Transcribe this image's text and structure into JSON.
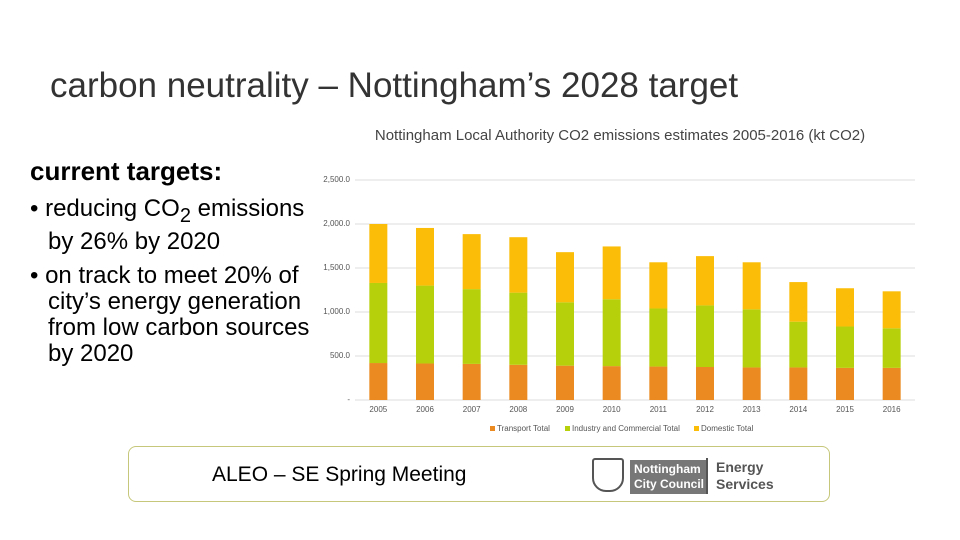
{
  "slide": {
    "title": "carbon neutrality – Nottingham’s 2028 target",
    "subheading": "current targets:",
    "bullets": [
      {
        "before": "reducing CO",
        "sub": "2",
        "after": " emissions by 26% by 2020"
      },
      {
        "before": "on track to meet 20% of city’s energy generation from low carbon sources by 2020"
      }
    ],
    "footer": {
      "text": "ALEO – SE Spring Meeting",
      "logo_line1": "Nottingham",
      "logo_line2": "City Council",
      "brand_line1": "Energy",
      "brand_line2": "Services"
    }
  },
  "chart_data": {
    "type": "stacked_bar",
    "title": "Nottingham Local Authority CO2 emissions estimates 2005-2016 (kt CO2)",
    "categories": [
      "2005",
      "2006",
      "2007",
      "2008",
      "2009",
      "2010",
      "2011",
      "2012",
      "2013",
      "2014",
      "2015",
      "2016"
    ],
    "series": [
      {
        "name": "Transport Total",
        "color": "#ea8a20",
        "values": [
          420,
          415,
          410,
          400,
          390,
          385,
          380,
          375,
          370,
          370,
          365,
          365
        ]
      },
      {
        "name": "Industry and Commercial Total",
        "color": "#b6d00c",
        "values": [
          910,
          885,
          850,
          820,
          720,
          760,
          660,
          700,
          660,
          520,
          470,
          450
        ]
      },
      {
        "name": "Domestic Total",
        "color": "#fbbd08",
        "values": [
          670,
          655,
          625,
          630,
          570,
          600,
          525,
          560,
          535,
          450,
          435,
          420
        ]
      }
    ],
    "ylim": [
      0,
      2500
    ],
    "yticks": [
      {
        "value": 0,
        "label": "-"
      },
      {
        "value": 500,
        "label": "500.0"
      },
      {
        "value": 1000,
        "label": "1,000.0"
      },
      {
        "value": 1500,
        "label": "1,500.0"
      },
      {
        "value": 2000,
        "label": "2,000.0"
      },
      {
        "value": 2500,
        "label": "2,500.0"
      }
    ],
    "grid": true,
    "legend": "bottom"
  }
}
